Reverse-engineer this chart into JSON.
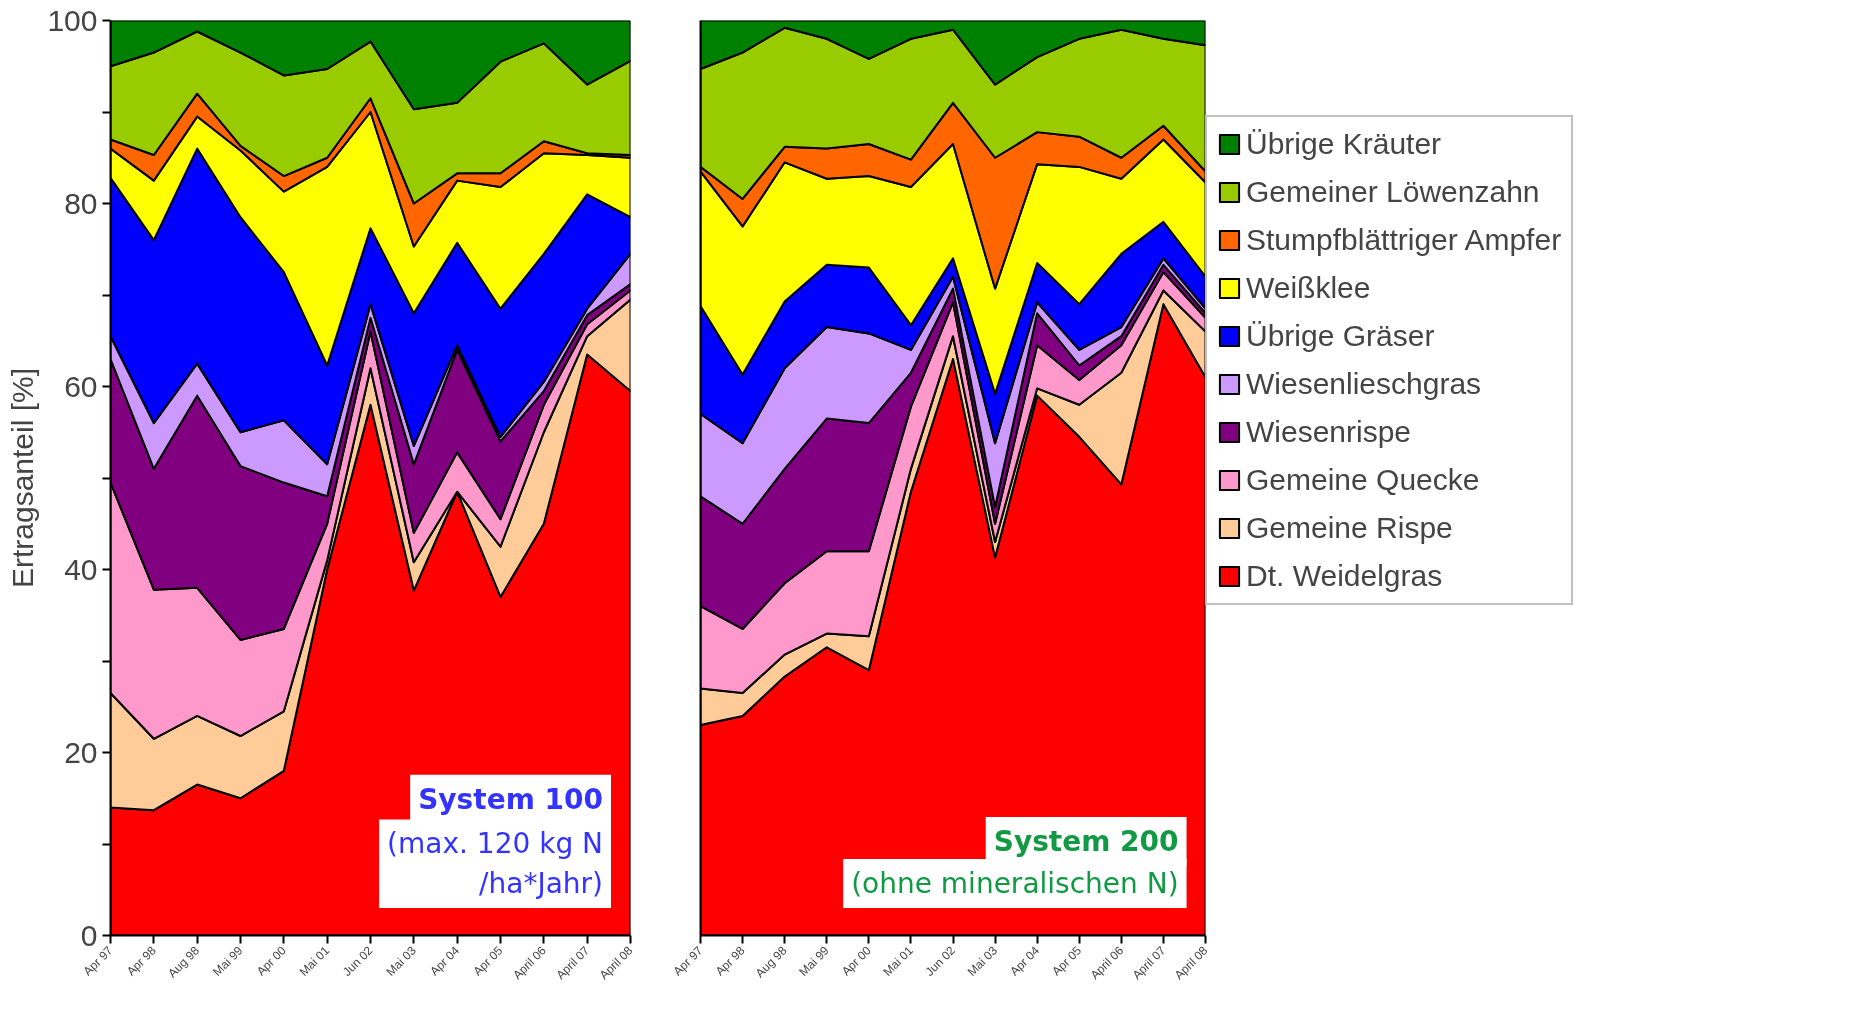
{
  "chart_data": [
    {
      "type": "area",
      "stacked": true,
      "ylabel": "Ertragsanteil [%]",
      "categories": [
        "Apr 97",
        "Apr 98",
        "Aug 98",
        "Mai 99",
        "Apr 00",
        "Mai 01",
        "Jun 02",
        "Mai 03",
        "Apr 04",
        "Apr 05",
        "April 06",
        "April 07",
        "April 08"
      ],
      "ylim": [
        0,
        100
      ],
      "yticks": [
        0,
        {
          "value": 10,
          "label": null
        },
        20,
        {
          "value": 30,
          "label": null
        },
        40,
        {
          "value": 50,
          "label": null
        },
        60,
        {
          "value": 70,
          "label": null
        },
        80,
        {
          "value": 90,
          "label": null
        },
        100
      ],
      "annotations": [
        "System 100",
        "(max. 120 kg N /ha*Jahr)"
      ],
      "series": [
        {
          "color": "#ff0000",
          "values": [
            14,
            13.7,
            16.5,
            15,
            18,
            40,
            58,
            37.7,
            48.5,
            37,
            45,
            63.5,
            59.5
          ]
        },
        {
          "color": "#ffcc99",
          "values": [
            12.5,
            7.8,
            7.5,
            6.8,
            6.5,
            1,
            4,
            3.1,
            0,
            5.5,
            10,
            2,
            10
          ]
        },
        {
          "color": "#ff99cc",
          "values": [
            23,
            16.3,
            14,
            10.5,
            9,
            4,
            4,
            3.2,
            4.3,
            3,
            3,
            1.3,
            1
          ]
        },
        {
          "color": "#800080",
          "values": [
            13.5,
            13.2,
            21,
            19,
            16,
            3,
            1.5,
            7.5,
            11.2,
            8.5,
            1.5,
            1,
            0.7
          ]
        },
        {
          "color": "#cc99ff",
          "values": [
            2.5,
            5,
            3.5,
            3.7,
            6.8,
            3.5,
            1.5,
            2,
            0.5,
            0.5,
            1,
            0.7,
            3.3
          ]
        },
        {
          "color": "#0000ff",
          "values": [
            17.3,
            20,
            23.5,
            23.5,
            16.2,
            10.8,
            8.3,
            14.5,
            11.2,
            14,
            14,
            12.5,
            4
          ]
        },
        {
          "color": "#ffff00",
          "values": [
            3.2,
            6.5,
            3.5,
            7.3,
            8.8,
            21.7,
            12.7,
            7.3,
            6.8,
            13.3,
            11,
            4.3,
            6.5
          ]
        },
        {
          "color": "#ff6600",
          "values": [
            1,
            2.8,
            2.5,
            0.5,
            1.7,
            1,
            1.5,
            4.7,
            0.8,
            1.5,
            1.3,
            0.2,
            0.3
          ]
        },
        {
          "color": "#99cc00",
          "values": [
            8,
            11.2,
            6.8,
            10.2,
            11,
            9.7,
            6.2,
            10.3,
            7.7,
            12.2,
            10.7,
            7.5,
            10.3
          ]
        },
        {
          "color": "#008000",
          "values": [
            5,
            3.5,
            1.2,
            3.5,
            6,
            5.3,
            2.3,
            9.7,
            9,
            4.5,
            2.5,
            7,
            4.4
          ]
        }
      ]
    },
    {
      "type": "area",
      "stacked": true,
      "legend": "right",
      "tick_labels": "x",
      "categories": [
        "Apr 97",
        "Apr 98",
        "Aug 98",
        "Mai 99",
        "Apr 00",
        "Mai 01",
        "Jun 02",
        "Mai 03",
        "Apr 04",
        "Apr 05",
        "April 06",
        "April 07",
        "April 08"
      ],
      "ylim": [
        0,
        100
      ],
      "annotations": [
        "System 200",
        "(ohne mineralischen N)"
      ],
      "series": [
        {
          "name": "Dt. Weidelgras",
          "color": "#ff0000",
          "values": [
            23,
            24,
            28.3,
            31.5,
            29,
            48.5,
            63,
            41.3,
            59,
            54.5,
            49.3,
            69,
            61
          ]
        },
        {
          "name": "Gemeine Rispe",
          "color": "#ffcc99",
          "values": [
            4,
            2.5,
            2.4,
            1.5,
            3.7,
            2.5,
            2.5,
            1.7,
            0.8,
            3.5,
            12.2,
            1.5,
            5
          ]
        },
        {
          "name": "Gemeine Quecke",
          "color": "#ff99cc",
          "values": [
            9,
            7,
            7.8,
            9,
            9.3,
            6.8,
            3.7,
            2,
            4.7,
            2.7,
            3,
            2,
            1.5
          ]
        },
        {
          "name": "Wiesenrispe",
          "color": "#800080",
          "values": [
            12,
            11.5,
            12.5,
            14.5,
            14,
            3.7,
            1.5,
            1.8,
            3.5,
            1.6,
            1,
            0.8,
            0.5
          ]
        },
        {
          "name": "Wiesenlieschgras",
          "color": "#cc99ff",
          "values": [
            9,
            8.8,
            11,
            10,
            9.8,
            2.5,
            1.3,
            7,
            1.2,
            1.7,
            1,
            0.7,
            0.5
          ]
        },
        {
          "name": "Übrige Gräser",
          "color": "#0000ff",
          "values": [
            11.8,
            7.5,
            7.3,
            6.8,
            7.2,
            2.7,
            2,
            5.4,
            4.3,
            5,
            8,
            4,
            3.5
          ]
        },
        {
          "name": "Weißklee",
          "color": "#ffff00",
          "values": [
            14.7,
            16.2,
            15.2,
            9.4,
            10,
            15.1,
            12.5,
            11.5,
            10.8,
            15,
            8.2,
            9,
            10.3
          ]
        },
        {
          "name": "Stumpfblättriger Ampfer",
          "color": "#ff6600",
          "values": [
            0.5,
            3,
            1.7,
            3.3,
            3.5,
            3,
            4.5,
            14.3,
            3.5,
            3.3,
            2.3,
            1.5,
            1.2
          ]
        },
        {
          "name": "Gemeiner Löwenzahn",
          "color": "#99cc00",
          "values": [
            10.7,
            16,
            13,
            12,
            9.3,
            13.2,
            8,
            8,
            8.2,
            10.7,
            14,
            9.5,
            13.8
          ]
        },
        {
          "name": "Übrige Kräuter",
          "color": "#008000",
          "values": [
            5.3,
            3.5,
            0.8,
            2,
            4.2,
            2,
            1,
            7,
            4,
            2,
            1,
            2,
            2.7
          ]
        }
      ]
    }
  ]
}
